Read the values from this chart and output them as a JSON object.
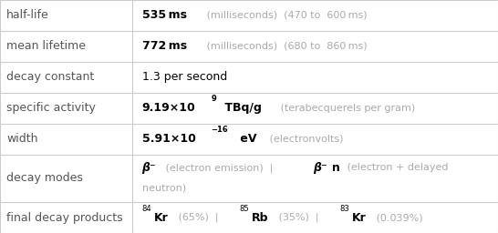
{
  "rows": [
    {
      "label": "half-life",
      "type": "bold_gray",
      "bold_text": "535 ms",
      "gray_text": " (milliseconds)  (470 to  600 ms)"
    },
    {
      "label": "mean lifetime",
      "type": "bold_gray",
      "bold_text": "772 ms",
      "gray_text": " (milliseconds)  (680 to  860 ms)"
    },
    {
      "label": "decay constant",
      "type": "plain",
      "text": "1.3 per second"
    },
    {
      "label": "specific activity",
      "type": "sci",
      "base": "9.19×10",
      "exp": "9",
      "unit": " TBq/g",
      "gray": " (terabecquerels per gram)"
    },
    {
      "label": "width",
      "type": "sci",
      "base": "5.91×10",
      "exp": "−16",
      "unit": " eV",
      "gray": " (electronvolts)"
    },
    {
      "label": "decay modes",
      "type": "decay_modes"
    },
    {
      "label": "final decay products",
      "type": "decay_products"
    }
  ],
  "col_split": 0.265,
  "bg_color": "#ffffff",
  "label_color": "#555555",
  "grid_color": "#cccccc",
  "bold_color": "#000000",
  "gray_color": "#aaaaaa",
  "font_size": 9.0,
  "row_heights": [
    1.0,
    1.0,
    1.0,
    1.0,
    1.0,
    1.55,
    1.0
  ]
}
